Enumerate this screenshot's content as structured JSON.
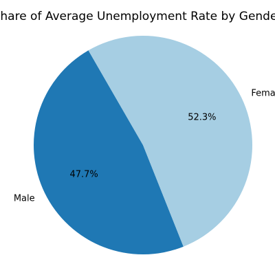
{
  "chart_data": {
    "type": "pie",
    "title": "Share of Average Unemployment Rate by Gender",
    "labels": [
      "Male",
      "Female"
    ],
    "values": [
      47.7,
      52.3
    ],
    "percent_labels": [
      "47.7%",
      "52.3%"
    ],
    "colors": [
      "#1f78b4",
      "#a6cee3"
    ],
    "start_angle_deg": 120,
    "direction": "counterclockwise",
    "legend": "none"
  }
}
